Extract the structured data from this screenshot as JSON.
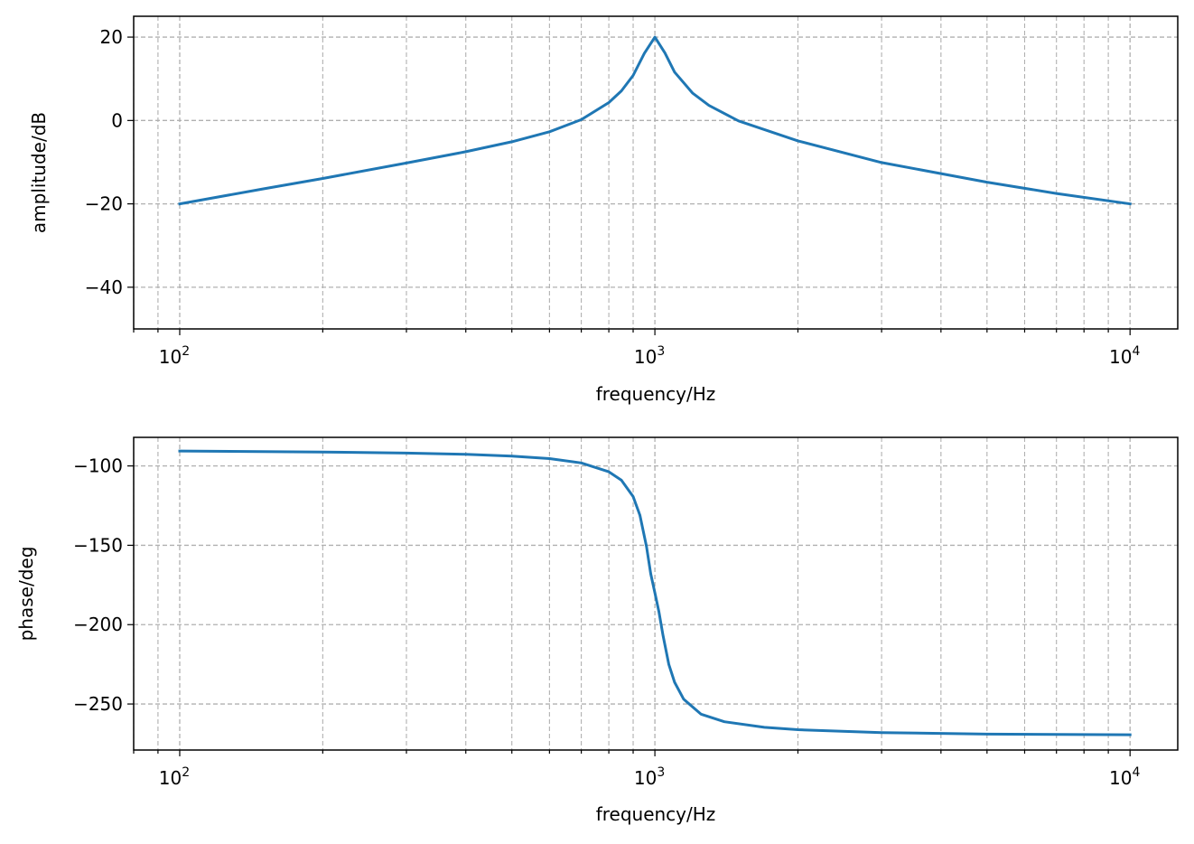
{
  "chart_data": [
    {
      "type": "line",
      "xlabel": "frequency/Hz",
      "ylabel": "amplitude/dB",
      "xscale": "log",
      "xlim": [
        80,
        12600
      ],
      "ylim": [
        -50,
        25
      ],
      "grid": true,
      "grid_style": "dashed",
      "x_ticks": [
        {
          "value": 100,
          "label": "10",
          "exp": "2"
        },
        {
          "value": 1000,
          "label": "10",
          "exp": "3"
        },
        {
          "value": 10000,
          "label": "10",
          "exp": "4"
        }
      ],
      "y_ticks": [
        {
          "value": 20,
          "label": "20"
        },
        {
          "value": 0,
          "label": "0"
        },
        {
          "value": -20,
          "label": "−20"
        },
        {
          "value": -40,
          "label": "−40"
        }
      ],
      "series": [
        {
          "color": "#1f77b4",
          "x": [
            100,
            150,
            200,
            300,
            400,
            500,
            600,
            700,
            800,
            850,
            900,
            950,
            1000,
            1050,
            1100,
            1200,
            1300,
            1500,
            2000,
            3000,
            5000,
            7000,
            10000
          ],
          "y": [
            -20,
            -16.4,
            -13.9,
            -10.2,
            -7.5,
            -5.1,
            -2.7,
            0.2,
            4.3,
            7.1,
            10.8,
            16.1,
            20,
            16.2,
            11.6,
            6.6,
            3.6,
            -0.1,
            -4.9,
            -10.1,
            -14.8,
            -17.5,
            -20
          ]
        }
      ]
    },
    {
      "type": "line",
      "xlabel": "frequency/Hz",
      "ylabel": "phase/deg",
      "xscale": "log",
      "xlim": [
        80,
        12600
      ],
      "ylim": [
        -279,
        -82
      ],
      "grid": true,
      "grid_style": "dashed",
      "x_ticks": [
        {
          "value": 100,
          "label": "10",
          "exp": "2"
        },
        {
          "value": 1000,
          "label": "10",
          "exp": "3"
        },
        {
          "value": 10000,
          "label": "10",
          "exp": "4"
        }
      ],
      "y_ticks": [
        {
          "value": -100,
          "label": "−100"
        },
        {
          "value": -150,
          "label": "−150"
        },
        {
          "value": -200,
          "label": "−200"
        },
        {
          "value": -250,
          "label": "−250"
        }
      ],
      "series": [
        {
          "color": "#1f77b4",
          "x": [
            100,
            200,
            300,
            400,
            500,
            600,
            700,
            800,
            850,
            900,
            930,
            960,
            980,
            1000,
            1020,
            1040,
            1070,
            1100,
            1150,
            1250,
            1400,
            1700,
            2000,
            3000,
            5000,
            10000
          ],
          "y": [
            -90.6,
            -91.2,
            -91.9,
            -92.7,
            -93.8,
            -95.4,
            -98.1,
            -103.7,
            -109,
            -119.3,
            -131,
            -150.8,
            -168,
            -180,
            -192,
            -206.8,
            -225,
            -236.3,
            -247,
            -256.4,
            -261.2,
            -264.7,
            -266.2,
            -268,
            -269,
            -269.4
          ]
        }
      ]
    }
  ]
}
